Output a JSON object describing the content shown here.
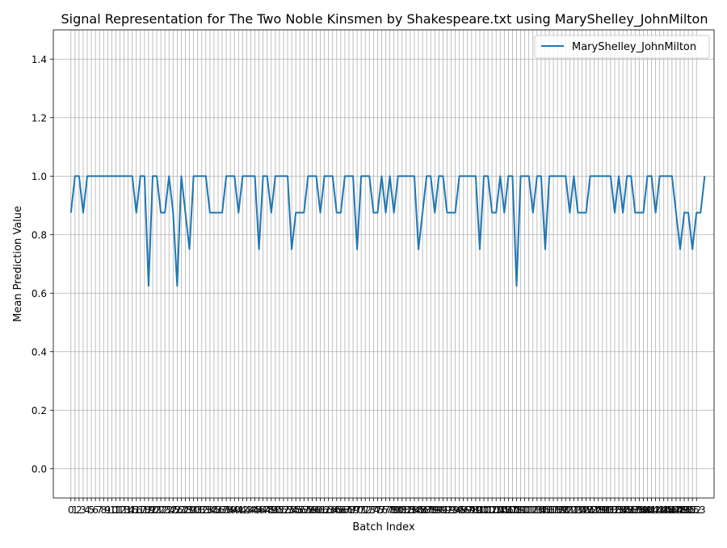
{
  "chart_data": {
    "type": "line",
    "title": "Signal Representation for The Two Noble Kinsmen by Shakespeare.txt using MaryShelley_JohnMilton",
    "xlabel": "Batch Index",
    "ylabel": "Mean Prediction Value",
    "xlim": [
      -4.3,
      157.3
    ],
    "ylim": [
      -0.1,
      1.5
    ],
    "y_ticks": [
      0.0,
      0.2,
      0.4,
      0.6,
      0.8,
      1.0,
      1.2,
      1.4
    ],
    "y_tick_labels": [
      "0.0",
      "0.2",
      "0.4",
      "0.6",
      "0.8",
      "1.0",
      "1.2",
      "1.4"
    ],
    "x_ticks_from": 0,
    "x_ticks_to": 153,
    "grid": true,
    "legend": {
      "placement": "top-right"
    },
    "colors": {
      "series": "#1f77b4",
      "grid": "#b0b0b0",
      "axes": "#000000"
    },
    "series": [
      {
        "name": "MaryShelley_JohnMilton",
        "values": [
          0.875,
          1.0,
          1.0,
          0.875,
          1.0,
          1.0,
          1.0,
          1.0,
          1.0,
          1.0,
          1.0,
          1.0,
          1.0,
          1.0,
          1.0,
          1.0,
          0.875,
          1.0,
          1.0,
          0.625,
          1.0,
          1.0,
          0.875,
          0.875,
          1.0,
          0.875,
          0.625,
          1.0,
          0.875,
          0.75,
          1.0,
          1.0,
          1.0,
          1.0,
          0.875,
          0.875,
          0.875,
          0.875,
          1.0,
          1.0,
          1.0,
          0.875,
          1.0,
          1.0,
          1.0,
          1.0,
          0.75,
          1.0,
          1.0,
          0.875,
          1.0,
          1.0,
          1.0,
          1.0,
          0.75,
          0.875,
          0.875,
          0.875,
          1.0,
          1.0,
          1.0,
          0.875,
          1.0,
          1.0,
          1.0,
          0.875,
          0.875,
          1.0,
          1.0,
          1.0,
          0.75,
          1.0,
          1.0,
          1.0,
          0.875,
          0.875,
          1.0,
          0.875,
          1.0,
          0.875,
          1.0,
          1.0,
          1.0,
          1.0,
          1.0,
          0.75,
          0.875,
          1.0,
          1.0,
          0.875,
          1.0,
          1.0,
          0.875,
          0.875,
          0.875,
          1.0,
          1.0,
          1.0,
          1.0,
          1.0,
          0.75,
          1.0,
          1.0,
          0.875,
          0.875,
          1.0,
          0.875,
          1.0,
          1.0,
          0.625,
          1.0,
          1.0,
          1.0,
          0.875,
          1.0,
          1.0,
          0.75,
          1.0,
          1.0,
          1.0,
          1.0,
          1.0,
          0.875,
          1.0,
          0.875,
          0.875,
          0.875,
          1.0,
          1.0,
          1.0,
          1.0,
          1.0,
          1.0,
          0.875,
          1.0,
          0.875,
          1.0,
          1.0,
          0.875,
          0.875,
          0.875,
          1.0,
          1.0,
          0.875,
          1.0,
          1.0,
          1.0,
          1.0,
          0.875,
          0.75,
          0.875,
          0.875,
          0.75,
          0.875,
          0.875,
          1.0
        ]
      }
    ]
  }
}
